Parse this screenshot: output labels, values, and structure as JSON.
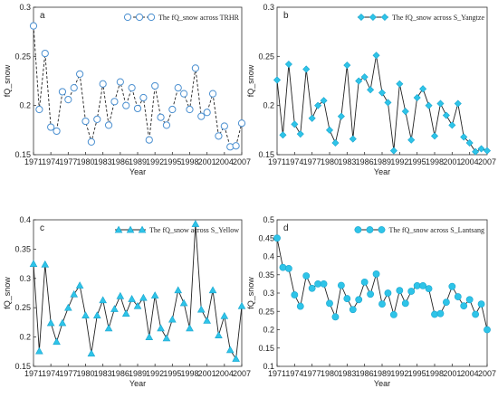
{
  "colors": {
    "marker": "#2ec4e8",
    "marker_stroke": "#19a5cf",
    "open_marker_stroke": "#4a8fd0",
    "line": "#222222",
    "axis": "#333333"
  },
  "chart_data": [
    {
      "type": "line",
      "panel_label": "a",
      "marker": "open-circle",
      "line_style": "dashed",
      "legend_label": "The fQ_snow across TRHR",
      "legend_position": "top-right",
      "xlabel": "Year",
      "ylabel": "fQ_snow",
      "ylim": [
        0.15,
        0.3
      ],
      "yticks": [
        "0.15",
        "0.2",
        "0.25",
        "0.3"
      ],
      "xticks": [
        "1971",
        "1974",
        "1977",
        "1980",
        "1983",
        "1986",
        "1989",
        "1992",
        "1995",
        "1998",
        "2001",
        "2004",
        "2007"
      ],
      "grid": false,
      "x": [
        1971,
        1972,
        1973,
        1974,
        1975,
        1976,
        1977,
        1978,
        1979,
        1980,
        1981,
        1982,
        1983,
        1984,
        1985,
        1986,
        1987,
        1988,
        1989,
        1990,
        1991,
        1992,
        1993,
        1994,
        1995,
        1996,
        1997,
        1998,
        1999,
        2000,
        2001,
        2002,
        2003,
        2004,
        2005,
        2006,
        2007
      ],
      "values": [
        0.281,
        0.196,
        0.253,
        0.178,
        0.174,
        0.214,
        0.206,
        0.218,
        0.232,
        0.184,
        0.163,
        0.186,
        0.222,
        0.18,
        0.204,
        0.224,
        0.2,
        0.218,
        0.197,
        0.208,
        0.165,
        0.22,
        0.188,
        0.18,
        0.196,
        0.218,
        0.212,
        0.196,
        0.238,
        0.189,
        0.193,
        0.212,
        0.169,
        0.179,
        0.158,
        0.159,
        0.182
      ]
    },
    {
      "type": "line",
      "panel_label": "b",
      "marker": "filled-diamond",
      "line_style": "solid",
      "legend_label": "The fQ_snow across S_Yangtze",
      "legend_position": "top-right",
      "xlabel": "Year",
      "ylabel": "fQ_snow",
      "ylim": [
        0.15,
        0.3
      ],
      "yticks": [
        "0.15",
        "0.2",
        "0.25",
        "0.3"
      ],
      "xticks": [
        "1971",
        "1974",
        "1977",
        "1980",
        "1983",
        "1986",
        "1989",
        "1992",
        "1995",
        "1998",
        "2001",
        "2004",
        "2007"
      ],
      "grid": false,
      "x": [
        1971,
        1972,
        1973,
        1974,
        1975,
        1976,
        1977,
        1978,
        1979,
        1980,
        1981,
        1982,
        1983,
        1984,
        1985,
        1986,
        1987,
        1988,
        1989,
        1990,
        1991,
        1992,
        1993,
        1994,
        1995,
        1996,
        1997,
        1998,
        1999,
        2000,
        2001,
        2002,
        2003,
        2004,
        2005,
        2006,
        2007
      ],
      "values": [
        0.226,
        0.17,
        0.242,
        0.181,
        0.171,
        0.237,
        0.187,
        0.2,
        0.205,
        0.175,
        0.162,
        0.189,
        0.241,
        0.166,
        0.225,
        0.229,
        0.216,
        0.251,
        0.213,
        0.203,
        0.154,
        0.222,
        0.194,
        0.165,
        0.208,
        0.217,
        0.2,
        0.169,
        0.202,
        0.19,
        0.18,
        0.202,
        0.168,
        0.162,
        0.153,
        0.156,
        0.154
      ]
    },
    {
      "type": "line",
      "panel_label": "c",
      "marker": "filled-triangle",
      "line_style": "solid",
      "legend_label": "The fQ_snow across S_Yellow",
      "legend_position": "top-right",
      "xlabel": "Year",
      "ylabel": "fQ_snow",
      "ylim": [
        0.15,
        0.4
      ],
      "yticks": [
        "0.15",
        "0.2",
        "0.25",
        "0.3",
        "0.35",
        "0.4"
      ],
      "xticks": [
        "1971",
        "1974",
        "1977",
        "1980",
        "1983",
        "1986",
        "1989",
        "1992",
        "1995",
        "1998",
        "2001",
        "2004",
        "2007"
      ],
      "grid": false,
      "x": [
        1971,
        1972,
        1973,
        1974,
        1975,
        1976,
        1977,
        1978,
        1979,
        1980,
        1981,
        1982,
        1983,
        1984,
        1985,
        1986,
        1987,
        1988,
        1989,
        1990,
        1991,
        1992,
        1993,
        1994,
        1995,
        1996,
        1997,
        1998,
        1999,
        2000,
        2001,
        2002,
        2003,
        2004,
        2005,
        2006,
        2007
      ],
      "values": [
        0.325,
        0.176,
        0.324,
        0.224,
        0.192,
        0.224,
        0.25,
        0.273,
        0.288,
        0.237,
        0.172,
        0.237,
        0.263,
        0.215,
        0.248,
        0.27,
        0.24,
        0.265,
        0.253,
        0.267,
        0.2,
        0.271,
        0.215,
        0.198,
        0.23,
        0.28,
        0.258,
        0.215,
        0.393,
        0.247,
        0.228,
        0.28,
        0.203,
        0.236,
        0.178,
        0.163,
        0.253
      ]
    },
    {
      "type": "line",
      "panel_label": "d",
      "marker": "filled-circle",
      "line_style": "solid",
      "legend_label": "The fQ_snow across S_Lantsang",
      "legend_position": "top-right",
      "xlabel": "Year",
      "ylabel": "fQ_snow",
      "ylim": [
        0.1,
        0.5
      ],
      "yticks": [
        "0.1",
        "0.15",
        "0.2",
        "0.25",
        "0.3",
        "0.35",
        "0.4",
        "0.45",
        "0.5"
      ],
      "xticks": [
        "1971",
        "1974",
        "1977",
        "1980",
        "1983",
        "1986",
        "1989",
        "1992",
        "1995",
        "1998",
        "2001",
        "2004",
        "2007"
      ],
      "grid": false,
      "x": [
        1971,
        1972,
        1973,
        1974,
        1975,
        1976,
        1977,
        1978,
        1979,
        1980,
        1981,
        1982,
        1983,
        1984,
        1985,
        1986,
        1987,
        1988,
        1989,
        1990,
        1991,
        1992,
        1993,
        1994,
        1995,
        1996,
        1997,
        1998,
        1999,
        2000,
        2001,
        2002,
        2003,
        2004,
        2005,
        2006,
        2007
      ],
      "values": [
        0.45,
        0.37,
        0.367,
        0.295,
        0.264,
        0.347,
        0.313,
        0.325,
        0.325,
        0.272,
        0.235,
        0.321,
        0.285,
        0.255,
        0.282,
        0.33,
        0.297,
        0.352,
        0.27,
        0.3,
        0.241,
        0.307,
        0.272,
        0.305,
        0.32,
        0.32,
        0.312,
        0.242,
        0.244,
        0.275,
        0.318,
        0.29,
        0.265,
        0.282,
        0.242,
        0.27,
        0.2
      ]
    }
  ]
}
